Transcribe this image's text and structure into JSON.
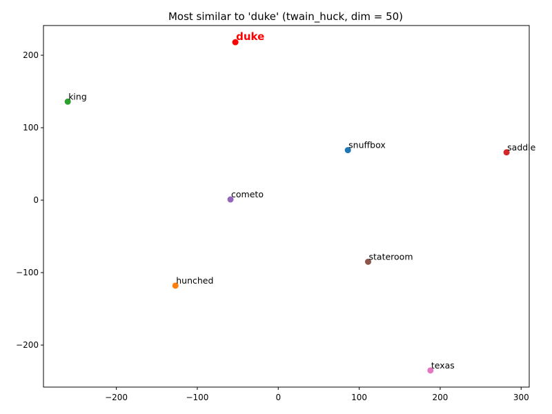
{
  "chart_data": {
    "type": "scatter",
    "title": "Most similar to 'duke' (twain_huck, dim = 50)",
    "xlabel": "",
    "ylabel": "",
    "xlim": [
      -290,
      310
    ],
    "ylim": [
      -258,
      241
    ],
    "xticks": [
      -200,
      -100,
      0,
      100,
      200,
      300
    ],
    "yticks": [
      -200,
      -100,
      0,
      100,
      200
    ],
    "grid": false,
    "points": [
      {
        "label": "duke",
        "x": -53,
        "y": 218,
        "color": "#ff0000",
        "highlight": true,
        "label_color": "#ff0000"
      },
      {
        "label": "snuffbox",
        "x": 86,
        "y": 69,
        "color": "#1f77b4"
      },
      {
        "label": "hunched",
        "x": -127,
        "y": -118,
        "color": "#ff7f0e"
      },
      {
        "label": "king",
        "x": -260,
        "y": 136,
        "color": "#2ca02c"
      },
      {
        "label": "saddle",
        "x": 282,
        "y": 66,
        "color": "#d62728"
      },
      {
        "label": "cometo",
        "x": -59,
        "y": 1,
        "color": "#9467bd"
      },
      {
        "label": "stateroom",
        "x": 111,
        "y": -85,
        "color": "#8c564b"
      },
      {
        "label": "texas",
        "x": 188,
        "y": -235,
        "color": "#e377c2"
      }
    ]
  }
}
